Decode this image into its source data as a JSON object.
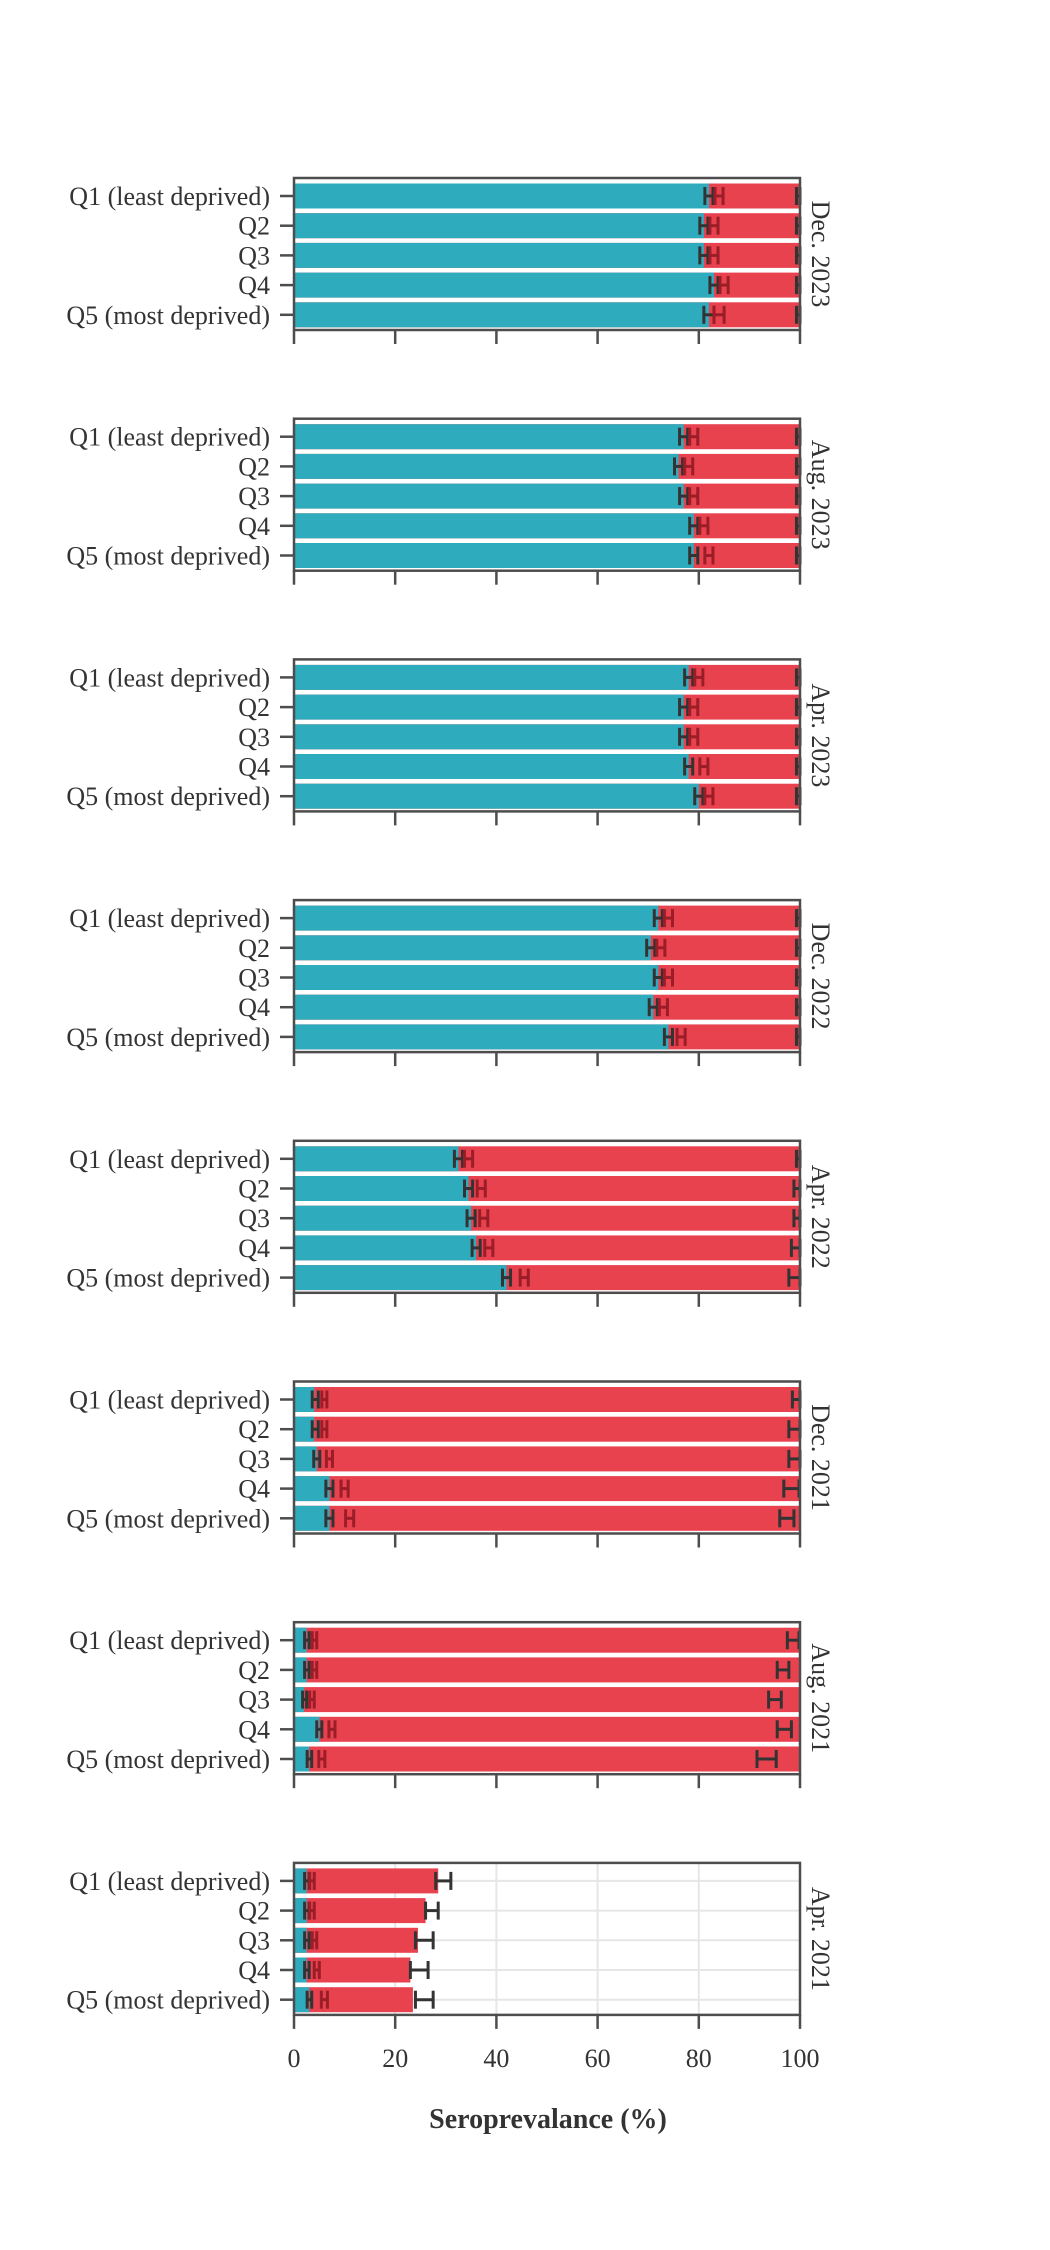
{
  "chart_data": {
    "type": "bar",
    "orientation": "horizontal",
    "stacked": true,
    "xlabel": "Seroprevalance (%)",
    "xlim": [
      0,
      100
    ],
    "x_ticks": [
      "0",
      "20",
      "40",
      "60",
      "80",
      "100"
    ],
    "categories": [
      "Q1 (least deprived)",
      "Q2",
      "Q3",
      "Q4",
      "Q5 (most deprived)"
    ],
    "colors": {
      "segment1": "#2eacbd",
      "segment2": "#e8424f",
      "error_bar": "#333333",
      "frame": "#4d4d4d"
    },
    "panels": [
      {
        "label": "Dec. 2023",
        "segment1": [
          82,
          81,
          81,
          83,
          82
        ],
        "segment1_ci": [
          [
            81.2,
            82.8
          ],
          [
            80.2,
            81.8
          ],
          [
            80.2,
            81.8
          ],
          [
            82.2,
            83.8
          ],
          [
            81,
            83
          ]
        ],
        "total": [
          84,
          83,
          83,
          85,
          84
        ],
        "total_ci": [
          [
            83.2,
            84.8
          ],
          [
            82.2,
            83.8
          ],
          [
            82.2,
            83.8
          ],
          [
            84.2,
            85.8
          ],
          [
            83,
            85
          ]
        ],
        "remainder_ci": [
          [
            99.3,
            100
          ],
          [
            99.3,
            100
          ],
          [
            99.3,
            100
          ],
          [
            99.3,
            100
          ],
          [
            99.3,
            100
          ]
        ]
      },
      {
        "label": "Aug. 2023",
        "segment1": [
          77,
          76,
          77,
          79,
          79
        ],
        "segment1_ci": [
          [
            76.2,
            77.8
          ],
          [
            75.2,
            76.8
          ],
          [
            76.2,
            77.8
          ],
          [
            78.2,
            79.8
          ],
          [
            78.2,
            79.8
          ]
        ],
        "total": [
          79,
          78,
          79,
          81,
          82
        ],
        "total_ci": [
          [
            78.2,
            79.8
          ],
          [
            77.2,
            78.8
          ],
          [
            78.2,
            79.8
          ],
          [
            80.2,
            81.8
          ],
          [
            81.2,
            82.8
          ]
        ],
        "remainder_ci": [
          [
            99.3,
            100
          ],
          [
            99.3,
            100
          ],
          [
            99.3,
            100
          ],
          [
            99.3,
            100
          ],
          [
            99.3,
            100
          ]
        ]
      },
      {
        "label": "Apr. 2023",
        "segment1": [
          78,
          77,
          77,
          78,
          80
        ],
        "segment1_ci": [
          [
            77.2,
            78.8
          ],
          [
            76.2,
            77.8
          ],
          [
            76.2,
            77.8
          ],
          [
            77.2,
            78.8
          ],
          [
            79.2,
            80.8
          ]
        ],
        "total": [
          80,
          79,
          79,
          81,
          82
        ],
        "total_ci": [
          [
            79.2,
            80.8
          ],
          [
            78.2,
            79.8
          ],
          [
            78.2,
            79.8
          ],
          [
            80.2,
            81.8
          ],
          [
            81.2,
            82.8
          ]
        ],
        "remainder_ci": [
          [
            99.3,
            100
          ],
          [
            99.3,
            100
          ],
          [
            99.3,
            100
          ],
          [
            99.3,
            100
          ],
          [
            99.3,
            100
          ]
        ]
      },
      {
        "label": "Dec. 2022",
        "segment1": [
          72,
          70.5,
          72,
          71,
          74
        ],
        "segment1_ci": [
          [
            71.2,
            72.8
          ],
          [
            69.7,
            71.3
          ],
          [
            71.2,
            72.8
          ],
          [
            70.2,
            71.8
          ],
          [
            73.2,
            74.8
          ]
        ],
        "total": [
          74,
          72.5,
          74,
          73,
          76.5
        ],
        "total_ci": [
          [
            73.2,
            74.8
          ],
          [
            71.7,
            73.3
          ],
          [
            73.2,
            74.8
          ],
          [
            72.2,
            73.8
          ],
          [
            75.7,
            77.3
          ]
        ],
        "remainder_ci": [
          [
            99.3,
            100
          ],
          [
            99.3,
            100
          ],
          [
            99.3,
            100
          ],
          [
            99.3,
            100
          ],
          [
            99.3,
            100
          ]
        ]
      },
      {
        "label": "Apr. 2022",
        "segment1": [
          32.5,
          34.5,
          35,
          36,
          42
        ],
        "segment1_ci": [
          [
            31.7,
            33.3
          ],
          [
            33.7,
            35.3
          ],
          [
            34.2,
            35.8
          ],
          [
            35.2,
            36.8
          ],
          [
            41.2,
            42.8
          ]
        ],
        "total": [
          34.5,
          37,
          37.5,
          38.5,
          45.5
        ],
        "total_ci": [
          [
            33.7,
            35.3
          ],
          [
            36.2,
            37.8
          ],
          [
            36.7,
            38.3
          ],
          [
            37.7,
            39.3
          ],
          [
            44.7,
            46.3
          ]
        ],
        "remainder_ci": [
          [
            99.3,
            100
          ],
          [
            98.8,
            100
          ],
          [
            98.8,
            100
          ],
          [
            98.3,
            100
          ],
          [
            97.8,
            100
          ]
        ]
      },
      {
        "label": "Dec. 2021",
        "segment1": [
          4,
          4,
          4.5,
          7,
          7
        ],
        "segment1_ci": [
          [
            3.6,
            4.8
          ],
          [
            3.6,
            4.8
          ],
          [
            3.9,
            5.1
          ],
          [
            6.3,
            7.7
          ],
          [
            6.3,
            7.7
          ]
        ],
        "total": [
          6,
          6,
          7,
          10,
          11
        ],
        "total_ci": [
          [
            5.5,
            6.5
          ],
          [
            5.5,
            6.5
          ],
          [
            6.4,
            7.6
          ],
          [
            9.3,
            10.7
          ],
          [
            10.2,
            11.8
          ]
        ],
        "remainder_ci": [
          [
            98.5,
            100
          ],
          [
            97.8,
            100
          ],
          [
            97.8,
            100
          ],
          [
            96.8,
            99.8
          ],
          [
            96,
            98.8
          ]
        ]
      },
      {
        "label": "Aug. 2021",
        "segment1": [
          2.5,
          2.5,
          2,
          5,
          3
        ],
        "segment1_ci": [
          [
            2.1,
            3
          ],
          [
            2.1,
            3
          ],
          [
            1.7,
            2.5
          ],
          [
            4.5,
            5.5
          ],
          [
            2.6,
            3.5
          ]
        ],
        "total": [
          4,
          4,
          3.5,
          7.5,
          5.5
        ],
        "total_ci": [
          [
            3.6,
            4.5
          ],
          [
            3.6,
            4.5
          ],
          [
            3.1,
            4
          ],
          [
            6.9,
            8.1
          ],
          [
            4.9,
            6.1
          ]
        ],
        "remainder_ci": [
          [
            97.5,
            99.8
          ],
          [
            95.5,
            97.8
          ],
          [
            93.8,
            96.3
          ],
          [
            95.5,
            98.3
          ],
          [
            91.5,
            95.3
          ]
        ]
      },
      {
        "label": "Apr. 2021",
        "segment1": [
          2.5,
          2.5,
          2.5,
          2.5,
          3
        ],
        "segment1_ci": [
          [
            2.1,
            3
          ],
          [
            2.1,
            3
          ],
          [
            2.1,
            3
          ],
          [
            2.1,
            3
          ],
          [
            2.6,
            3.5
          ]
        ],
        "total": [
          3.5,
          3.5,
          4,
          4.5,
          6
        ],
        "total_ci": [
          [
            3.1,
            4
          ],
          [
            3.1,
            4
          ],
          [
            3.6,
            4.5
          ],
          [
            4,
            5
          ],
          [
            5.4,
            6.6
          ]
        ],
        "outer": [
          28.5,
          26,
          24.5,
          23,
          23.5
        ],
        "outer_ci": [
          [
            28,
            31
          ],
          [
            26,
            28.5
          ],
          [
            24,
            27.5
          ],
          [
            23,
            26.5
          ],
          [
            24,
            27.5
          ]
        ]
      }
    ]
  }
}
